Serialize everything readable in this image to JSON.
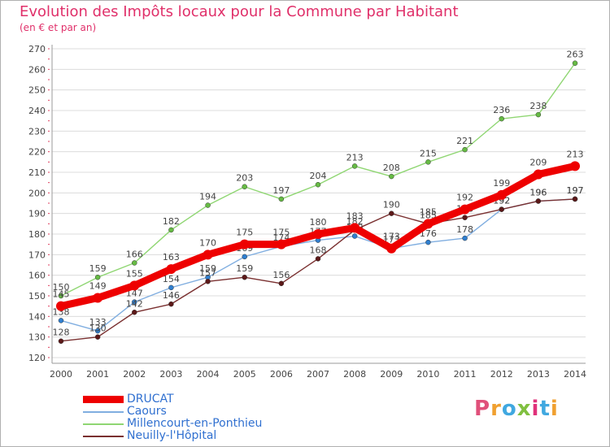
{
  "chart_data": {
    "type": "line",
    "title": "Evolution des Impôts locaux pour la Commune par Habitant",
    "subtitle": "(en € et par an)",
    "x": [
      "2000",
      "2001",
      "2002",
      "2003",
      "2004",
      "2005",
      "2006",
      "2007",
      "2008",
      "2009",
      "2010",
      "2011",
      "2012",
      "2013",
      "2014"
    ],
    "ylim": [
      120,
      270
    ],
    "yticks": [
      "120",
      "130",
      "140",
      "150",
      "160",
      "170",
      "180",
      "190",
      "200",
      "210",
      "220",
      "230",
      "240",
      "250",
      "260",
      "270"
    ],
    "grid": true,
    "series": [
      {
        "name": "Millencourt-en-Ponthieu",
        "color": "#8fd672",
        "marker": "#66bb44",
        "values": [
          150,
          159,
          166,
          182,
          194,
          203,
          197,
          204,
          213,
          208,
          215,
          221,
          236,
          238,
          263
        ]
      },
      {
        "name": "Caours",
        "color": "#80aee0",
        "marker": "#2f7fd0",
        "values": [
          138,
          133,
          147,
          154,
          159,
          169,
          174,
          177,
          179,
          173,
          176,
          178,
          192,
          196,
          197
        ]
      },
      {
        "name": "Neuilly-l'Hôpital",
        "color": "#7a3030",
        "marker": "#5c1818",
        "values": [
          128,
          130,
          142,
          146,
          157,
          159,
          156,
          168,
          182,
          190,
          185,
          188,
          192,
          196,
          197
        ]
      },
      {
        "name": "DRUCAT",
        "color": "#ee0000",
        "marker": "#ee0000",
        "values": [
          145,
          149,
          155,
          163,
          170,
          175,
          175,
          180,
          183,
          173,
          185,
          192,
          199,
          209,
          213
        ]
      }
    ],
    "legend_order": [
      "DRUCAT",
      "Caours",
      "Millencourt-en-Ponthieu",
      "Neuilly-l'Hôpital"
    ]
  },
  "brand": {
    "text": "Proxiti"
  }
}
